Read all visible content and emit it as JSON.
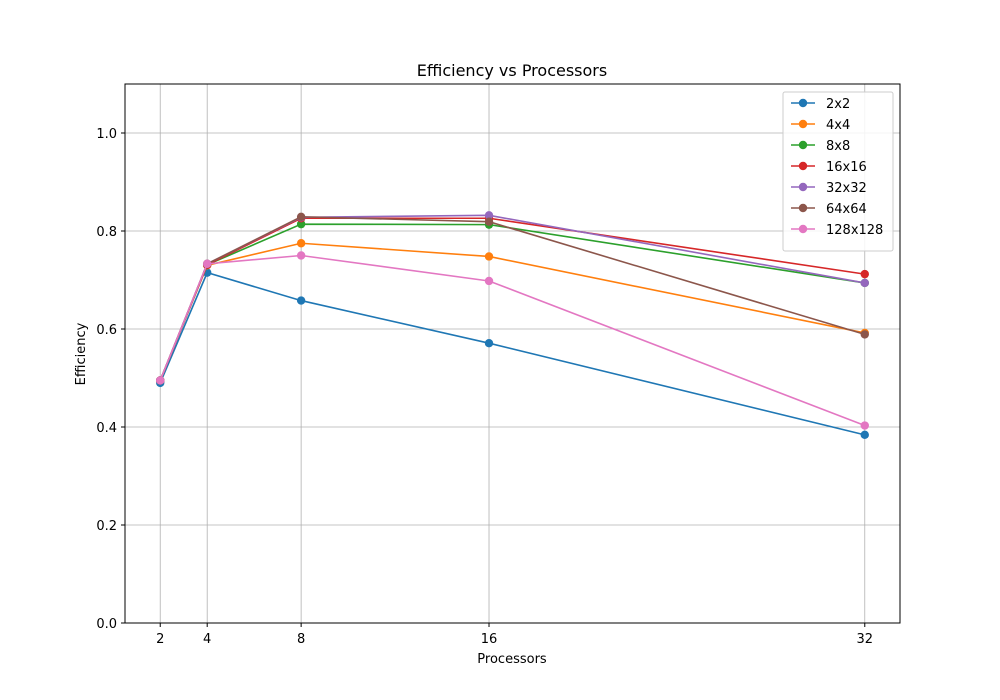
{
  "chart_data": {
    "type": "line",
    "title": "Efficiency vs Processors",
    "xlabel": "Processors",
    "ylabel": "Efficiency",
    "x": [
      2,
      4,
      8,
      16,
      32
    ],
    "xlim": [
      0.5,
      33.5
    ],
    "ylim": [
      0.0,
      1.1
    ],
    "xticks": [
      "2",
      "4",
      "8",
      "16",
      "32"
    ],
    "yticks": [
      "0.0",
      "0.2",
      "0.4",
      "0.6",
      "0.8",
      "1.0"
    ],
    "grid": true,
    "legend_position": "top-right",
    "series": [
      {
        "name": "2x2",
        "color": "#1f77b4",
        "values": [
          0.49,
          0.715,
          0.658,
          0.571,
          0.384
        ]
      },
      {
        "name": "4x4",
        "color": "#ff7f0e",
        "values": [
          0.495,
          0.73,
          0.775,
          0.748,
          0.592
        ]
      },
      {
        "name": "8x8",
        "color": "#2ca02c",
        "values": [
          0.495,
          0.731,
          0.814,
          0.813,
          0.694
        ]
      },
      {
        "name": "16x16",
        "color": "#d62728",
        "values": [
          0.495,
          0.731,
          0.826,
          0.826,
          0.712
        ]
      },
      {
        "name": "32x32",
        "color": "#9467bd",
        "values": [
          0.495,
          0.733,
          0.828,
          0.832,
          0.694
        ]
      },
      {
        "name": "64x64",
        "color": "#8c564b",
        "values": [
          0.495,
          0.733,
          0.829,
          0.819,
          0.589
        ]
      },
      {
        "name": "128x128",
        "color": "#e377c2",
        "values": [
          0.495,
          0.733,
          0.75,
          0.698,
          0.403
        ]
      }
    ]
  }
}
